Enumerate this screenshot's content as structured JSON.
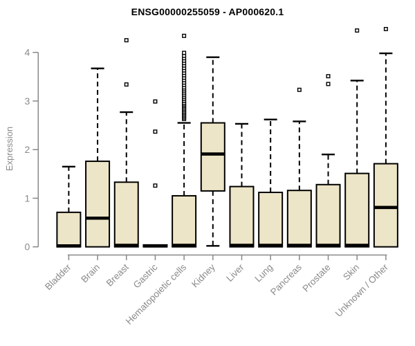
{
  "title": "ENSG00000255059 - AP000620.1",
  "colors": {
    "box_fill": "#EDE5C7",
    "box_stroke": "#000000",
    "median": "#000000",
    "outlier_fill": "#ffffff",
    "axis": "#888888",
    "axis_text": "#8a8a8a",
    "title_text": "#000000",
    "background": "#ffffff"
  },
  "chart_data": {
    "type": "boxplot",
    "title": "ENSG00000255059 - AP000620.1",
    "xlabel": "",
    "ylabel": "Expression",
    "ylim": [
      0,
      4
    ],
    "yticks": [
      0,
      1,
      2,
      3,
      4
    ],
    "grid": false,
    "legend": "none",
    "categories": [
      "Bladder",
      "Brain",
      "Breast",
      "Gastric",
      "Hematopoietic cells",
      "Kidney",
      "Liver",
      "Lung",
      "Pancreas",
      "Prostate",
      "Skin",
      "Unknown / Other"
    ],
    "series": [
      {
        "name": "Bladder",
        "whisker_low": 0,
        "q1": 0,
        "median": 0.02,
        "q3": 0.71,
        "whisker_high": 1.65,
        "outliers": []
      },
      {
        "name": "Brain",
        "whisker_low": 0,
        "q1": 0,
        "median": 0.59,
        "q3": 1.76,
        "whisker_high": 3.67,
        "outliers": []
      },
      {
        "name": "Breast",
        "whisker_low": 0,
        "q1": 0,
        "median": 0.03,
        "q3": 1.33,
        "whisker_high": 2.77,
        "outliers": [
          3.34,
          4.25
        ]
      },
      {
        "name": "Gastric",
        "whisker_low": 0,
        "q1": 0,
        "median": 0.02,
        "q3": 0.04,
        "whisker_high": 0.04,
        "outliers": [
          1.26,
          2.37,
          2.99
        ]
      },
      {
        "name": "Hematopoietic cells",
        "whisker_low": 0,
        "q1": 0,
        "median": 0.03,
        "q3": 1.05,
        "whisker_high": 2.55,
        "outliers": [
          2.63,
          2.66,
          2.69,
          2.72,
          2.75,
          2.78,
          2.81,
          2.84,
          2.87,
          2.9,
          2.93,
          2.96,
          3.0,
          3.04,
          3.08,
          3.12,
          3.16,
          3.2,
          3.24,
          3.28,
          3.33,
          3.38,
          3.43,
          3.48,
          3.53,
          3.58,
          3.63,
          3.68,
          3.73,
          3.78,
          3.83,
          3.88,
          3.93,
          3.99,
          4.34
        ]
      },
      {
        "name": "Kidney",
        "whisker_low": 0.02,
        "q1": 1.15,
        "median": 1.91,
        "q3": 2.55,
        "whisker_high": 3.9,
        "outliers": []
      },
      {
        "name": "Liver",
        "whisker_low": 0,
        "q1": 0,
        "median": 0.03,
        "q3": 1.24,
        "whisker_high": 2.53,
        "outliers": []
      },
      {
        "name": "Lung",
        "whisker_low": 0,
        "q1": 0,
        "median": 0.03,
        "q3": 1.12,
        "whisker_high": 2.62,
        "outliers": []
      },
      {
        "name": "Pancreas",
        "whisker_low": 0,
        "q1": 0,
        "median": 0.03,
        "q3": 1.16,
        "whisker_high": 2.58,
        "outliers": [
          3.23
        ]
      },
      {
        "name": "Prostate",
        "whisker_low": 0,
        "q1": 0,
        "median": 0.03,
        "q3": 1.28,
        "whisker_high": 1.9,
        "outliers": [
          3.35,
          3.51
        ]
      },
      {
        "name": "Skin",
        "whisker_low": 0,
        "q1": 0,
        "median": 0.03,
        "q3": 1.51,
        "whisker_high": 3.42,
        "outliers": [
          4.45
        ]
      },
      {
        "name": "Unknown / Other",
        "whisker_low": 0,
        "q1": 0,
        "median": 0.81,
        "q3": 1.71,
        "whisker_high": 3.98,
        "outliers": [
          4.48
        ]
      }
    ]
  }
}
